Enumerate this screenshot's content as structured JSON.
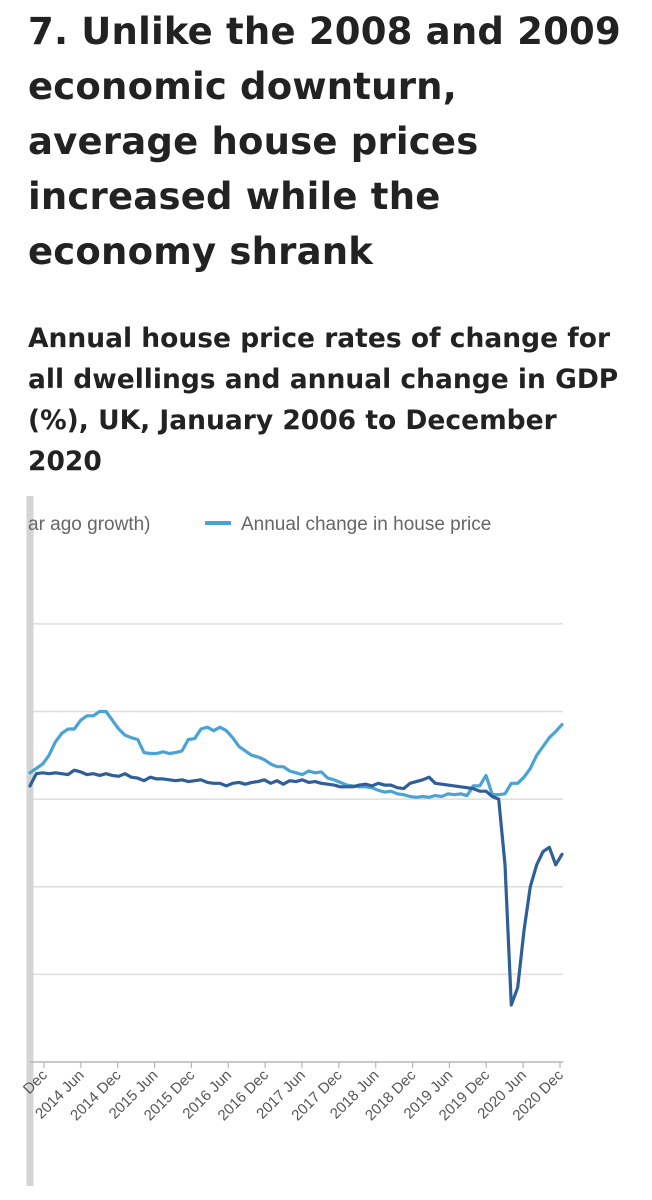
{
  "header": {
    "title": "7. Unlike the 2008 and 2009 economic downturn, average house prices increased while the economy shrank"
  },
  "chart_data": {
    "type": "line",
    "title": "Annual house price rates of change for all dwellings and annual change in GDP (%), UK, January 2006 to December 2020",
    "legend": [
      {
        "name": "ar ago growth)",
        "color": "#2e5f99"
      },
      {
        "name": "Annual change in house price",
        "color": "#4aa3d4"
      }
    ],
    "x_ticks": [
      "Dec",
      "2014 Jun",
      "2014 Dec",
      "2015 Jun",
      "2015 Dec",
      "2016 Jun",
      "2016 Dec",
      "2017 Jun",
      "2017 Dec",
      "2018 Jun",
      "2018 Dec",
      "2019 Jun",
      "2019 Dec",
      "2020 Jun",
      "2020 Dec"
    ],
    "ylim": [
      -30,
      25
    ],
    "gridlines": [
      20,
      10,
      0,
      -10,
      -20,
      -30
    ],
    "series": [
      {
        "name": "Annual change in house price",
        "color": "#4aa3d4",
        "x": [
          0,
          1,
          2,
          3,
          4,
          5,
          6,
          7,
          8,
          9,
          10,
          11,
          12,
          13,
          14,
          15,
          16,
          17,
          18,
          19,
          20,
          21,
          22,
          23,
          24,
          25,
          26,
          27,
          28,
          29,
          30,
          31,
          32,
          33,
          34,
          35,
          36,
          37,
          38,
          39,
          40,
          41,
          42,
          43,
          44,
          45,
          46,
          47,
          48,
          49,
          50,
          51,
          52,
          53,
          54,
          55,
          56,
          57,
          58,
          59,
          60,
          61,
          62,
          63,
          64,
          65,
          66,
          67,
          68,
          69,
          70,
          71,
          72,
          73,
          74,
          75,
          76,
          77,
          78,
          79,
          80,
          81,
          82,
          83,
          84
        ],
        "values": [
          3,
          3.5,
          4,
          5,
          6.5,
          7.5,
          8,
          8,
          9,
          9.5,
          9.5,
          10,
          10,
          9,
          8,
          7.3,
          7,
          6.8,
          5.3,
          5.2,
          5.2,
          5.4,
          5.2,
          5.3,
          5.5,
          6.8,
          6.9,
          8,
          8.2,
          7.8,
          8.2,
          7.8,
          7,
          6,
          5.5,
          5.0,
          4.8,
          4.5,
          4.0,
          3.7,
          3.7,
          3.2,
          3.0,
          2.8,
          3.2,
          3.0,
          3.1,
          2.4,
          2.2,
          1.9,
          1.6,
          1.5,
          1.4,
          1.4,
          1.3,
          1.0,
          0.8,
          0.9,
          0.6,
          0.5,
          0.3,
          0.2,
          0.3,
          0.2,
          0.4,
          0.3,
          0.6,
          0.5,
          0.6,
          0.4,
          1.5,
          1.5,
          2.7,
          0.5,
          0.5,
          0.6,
          1.8,
          1.8,
          2.5,
          3.5,
          5.0,
          6.0,
          7.0,
          7.7,
          8.5
        ]
      },
      {
        "name": "ar ago growth)",
        "color": "#2e5f99",
        "x": [
          0,
          1,
          2,
          3,
          4,
          5,
          6,
          7,
          8,
          9,
          10,
          11,
          12,
          13,
          14,
          15,
          16,
          17,
          18,
          19,
          20,
          21,
          22,
          23,
          24,
          25,
          26,
          27,
          28,
          29,
          30,
          31,
          32,
          33,
          34,
          35,
          36,
          37,
          38,
          39,
          40,
          41,
          42,
          43,
          44,
          45,
          46,
          47,
          48,
          49,
          50,
          51,
          52,
          53,
          54,
          55,
          56,
          57,
          58,
          59,
          60,
          61,
          62,
          63,
          64,
          65,
          66,
          67,
          68,
          69,
          70,
          71,
          72,
          73,
          74,
          75,
          76,
          77,
          78,
          79,
          80,
          81,
          82,
          83,
          84
        ],
        "values": [
          1.5,
          2.9,
          3.0,
          2.9,
          3.0,
          2.9,
          2.8,
          3.3,
          3.1,
          2.8,
          2.9,
          2.7,
          2.9,
          2.7,
          2.6,
          2.9,
          2.5,
          2.4,
          2.1,
          2.5,
          2.3,
          2.3,
          2.2,
          2.1,
          2.2,
          2.0,
          2.1,
          2.2,
          1.9,
          1.8,
          1.8,
          1.5,
          1.8,
          1.9,
          1.7,
          1.9,
          2.0,
          2.2,
          1.8,
          2.1,
          1.7,
          2.1,
          2.0,
          2.2,
          1.9,
          2.0,
          1.8,
          1.7,
          1.6,
          1.4,
          1.4,
          1.4,
          1.6,
          1.7,
          1.5,
          1.8,
          1.6,
          1.6,
          1.3,
          1.2,
          1.8,
          2.0,
          2.2,
          2.5,
          1.8,
          1.7,
          1.6,
          1.5,
          1.4,
          1.3,
          1.2,
          0.9,
          0.9,
          0.3,
          0.0,
          -7.5,
          -23.5,
          -21.5,
          -15.0,
          -10.0,
          -7.5,
          -6.0,
          -5.5,
          -7.5,
          -6.3
        ]
      }
    ]
  }
}
